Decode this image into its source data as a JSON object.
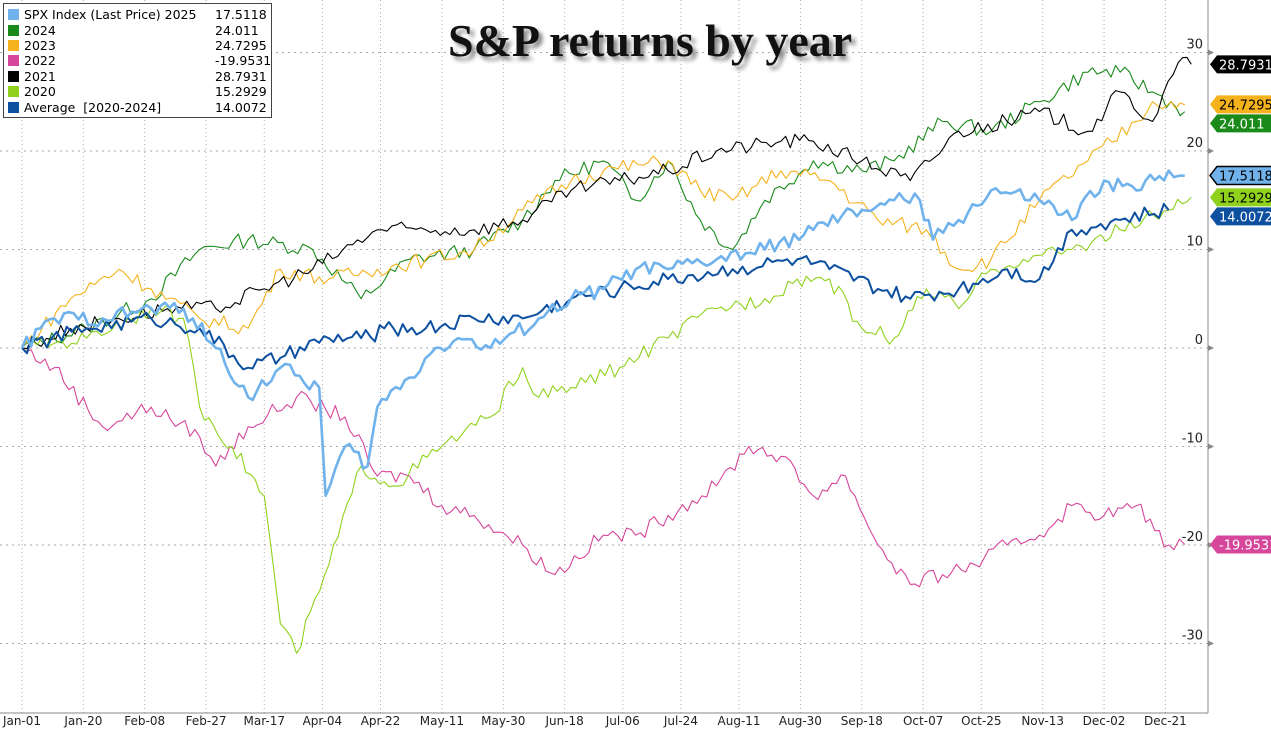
{
  "chart_data": {
    "type": "line",
    "title": "S&P returns by year",
    "xlabel": "",
    "ylabel": "",
    "x_unit": "day of year",
    "xlim": [
      0,
      366
    ],
    "ylim": [
      -37,
      36
    ],
    "grid": true,
    "legend_position": "top-left",
    "x_ticks": [
      {
        "label": "Jan-01",
        "day": 0
      },
      {
        "label": "Jan-20",
        "day": 19
      },
      {
        "label": "Feb-08",
        "day": 38
      },
      {
        "label": "Feb-27",
        "day": 57
      },
      {
        "label": "Mar-17",
        "day": 75
      },
      {
        "label": "Apr-04",
        "day": 93
      },
      {
        "label": "Apr-22",
        "day": 111
      },
      {
        "label": "May-11",
        "day": 130
      },
      {
        "label": "May-30",
        "day": 149
      },
      {
        "label": "Jun-18",
        "day": 168
      },
      {
        "label": "Jul-06",
        "day": 186
      },
      {
        "label": "Jul-24",
        "day": 204
      },
      {
        "label": "Aug-11",
        "day": 222
      },
      {
        "label": "Aug-30",
        "day": 241
      },
      {
        "label": "Sep-18",
        "day": 260
      },
      {
        "label": "Oct-07",
        "day": 279
      },
      {
        "label": "Oct-25",
        "day": 297
      },
      {
        "label": "Nov-13",
        "day": 316
      },
      {
        "label": "Dec-02",
        "day": 335
      },
      {
        "label": "Dec-21",
        "day": 354
      }
    ],
    "y_ticks": [
      30,
      20,
      10,
      0,
      -10,
      -20,
      -30
    ],
    "series": [
      {
        "name": "2024",
        "label": "2024",
        "last": "24.011",
        "color": "#1a8a1a",
        "width": 1.1,
        "tag_text": "#fff",
        "points": [
          [
            0,
            0
          ],
          [
            20,
            2
          ],
          [
            40,
            5
          ],
          [
            55,
            10
          ],
          [
            70,
            11
          ],
          [
            90,
            10
          ],
          [
            105,
            5
          ],
          [
            120,
            9
          ],
          [
            140,
            10
          ],
          [
            155,
            13
          ],
          [
            165,
            17
          ],
          [
            180,
            19
          ],
          [
            190,
            15
          ],
          [
            200,
            19
          ],
          [
            210,
            13
          ],
          [
            220,
            10
          ],
          [
            230,
            15
          ],
          [
            245,
            19
          ],
          [
            260,
            18
          ],
          [
            270,
            19
          ],
          [
            285,
            23
          ],
          [
            300,
            22
          ],
          [
            315,
            25
          ],
          [
            330,
            28
          ],
          [
            340,
            28
          ],
          [
            350,
            26
          ],
          [
            360,
            24
          ]
        ]
      },
      {
        "name": "2023",
        "label": "2023",
        "last": "24.7295",
        "color": "#f5b21c",
        "width": 1.1,
        "tag_text": "#000",
        "points": [
          [
            0,
            0
          ],
          [
            15,
            5
          ],
          [
            30,
            8
          ],
          [
            40,
            6
          ],
          [
            55,
            3
          ],
          [
            70,
            2
          ],
          [
            80,
            8
          ],
          [
            95,
            7
          ],
          [
            110,
            8
          ],
          [
            125,
            9
          ],
          [
            140,
            10
          ],
          [
            155,
            14
          ],
          [
            170,
            17
          ],
          [
            180,
            18
          ],
          [
            200,
            19
          ],
          [
            210,
            16
          ],
          [
            220,
            15
          ],
          [
            235,
            18
          ],
          [
            250,
            17
          ],
          [
            265,
            13
          ],
          [
            280,
            12
          ],
          [
            290,
            8
          ],
          [
            300,
            9
          ],
          [
            315,
            15
          ],
          [
            330,
            19
          ],
          [
            345,
            23
          ],
          [
            350,
            25
          ],
          [
            360,
            24.7
          ]
        ]
      },
      {
        "name": "2022",
        "label": "2022",
        "last": "-19.9531",
        "color": "#d6469a",
        "width": 1.1,
        "tag_text": "#fff",
        "points": [
          [
            0,
            0
          ],
          [
            10,
            -2
          ],
          [
            25,
            -8
          ],
          [
            40,
            -6
          ],
          [
            55,
            -9
          ],
          [
            60,
            -12
          ],
          [
            70,
            -8
          ],
          [
            85,
            -5
          ],
          [
            100,
            -7
          ],
          [
            110,
            -13
          ],
          [
            120,
            -13
          ],
          [
            130,
            -16
          ],
          [
            140,
            -17
          ],
          [
            155,
            -20
          ],
          [
            165,
            -23
          ],
          [
            180,
            -19
          ],
          [
            190,
            -19
          ],
          [
            200,
            -17
          ],
          [
            215,
            -14
          ],
          [
            225,
            -10
          ],
          [
            235,
            -11
          ],
          [
            245,
            -15
          ],
          [
            255,
            -13
          ],
          [
            265,
            -20
          ],
          [
            275,
            -24
          ],
          [
            285,
            -23
          ],
          [
            295,
            -22
          ],
          [
            305,
            -20
          ],
          [
            315,
            -19
          ],
          [
            325,
            -16
          ],
          [
            335,
            -17
          ],
          [
            345,
            -16
          ],
          [
            355,
            -20
          ],
          [
            360,
            -19.95
          ]
        ]
      },
      {
        "name": "2021",
        "label": "2021",
        "last": "28.7931",
        "color": "#000000",
        "width": 1.1,
        "tag_text": "#fff",
        "points": [
          [
            0,
            0
          ],
          [
            15,
            2
          ],
          [
            30,
            3
          ],
          [
            45,
            4
          ],
          [
            60,
            4
          ],
          [
            75,
            6
          ],
          [
            90,
            8
          ],
          [
            110,
            12
          ],
          [
            125,
            12
          ],
          [
            140,
            12
          ],
          [
            155,
            13
          ],
          [
            170,
            16
          ],
          [
            185,
            17
          ],
          [
            200,
            18
          ],
          [
            215,
            20
          ],
          [
            235,
            21
          ],
          [
            245,
            21
          ],
          [
            260,
            19
          ],
          [
            275,
            17
          ],
          [
            290,
            22
          ],
          [
            305,
            23
          ],
          [
            315,
            24
          ],
          [
            330,
            22
          ],
          [
            340,
            26
          ],
          [
            350,
            23
          ],
          [
            358,
            29
          ],
          [
            362,
            28.8
          ]
        ]
      },
      {
        "name": "2020",
        "label": "2020",
        "last": "15.2929",
        "color": "#8fd11c",
        "width": 1.1,
        "tag_text": "#000",
        "points": [
          [
            0,
            0
          ],
          [
            20,
            1
          ],
          [
            40,
            4
          ],
          [
            50,
            3
          ],
          [
            55,
            -6
          ],
          [
            65,
            -10
          ],
          [
            75,
            -15
          ],
          [
            80,
            -28
          ],
          [
            85,
            -31
          ],
          [
            95,
            -22
          ],
          [
            105,
            -12
          ],
          [
            115,
            -14
          ],
          [
            130,
            -10
          ],
          [
            145,
            -7
          ],
          [
            155,
            -2
          ],
          [
            160,
            -5
          ],
          [
            170,
            -4
          ],
          [
            185,
            -2
          ],
          [
            200,
            1
          ],
          [
            215,
            4
          ],
          [
            230,
            5
          ],
          [
            240,
            7
          ],
          [
            250,
            7
          ],
          [
            260,
            2
          ],
          [
            270,
            1
          ],
          [
            280,
            6
          ],
          [
            290,
            4
          ],
          [
            300,
            8
          ],
          [
            310,
            9
          ],
          [
            325,
            10
          ],
          [
            340,
            12
          ],
          [
            355,
            14
          ],
          [
            362,
            15.3
          ]
        ]
      },
      {
        "name": "Average",
        "label": "Average  [2020-2024]",
        "last": "14.0072",
        "color": "#0d50a0",
        "width": 2,
        "tag_text": "#fff",
        "points": [
          [
            0,
            0
          ],
          [
            20,
            2
          ],
          [
            40,
            3
          ],
          [
            55,
            2
          ],
          [
            70,
            -2
          ],
          [
            80,
            -1
          ],
          [
            95,
            1
          ],
          [
            105,
            1
          ],
          [
            115,
            2
          ],
          [
            125,
            2
          ],
          [
            140,
            3
          ],
          [
            155,
            3
          ],
          [
            170,
            5
          ],
          [
            185,
            6
          ],
          [
            200,
            7
          ],
          [
            220,
            8
          ],
          [
            240,
            9
          ],
          [
            250,
            8
          ],
          [
            265,
            6
          ],
          [
            275,
            5
          ],
          [
            290,
            6
          ],
          [
            305,
            8
          ],
          [
            315,
            7
          ],
          [
            325,
            12
          ],
          [
            340,
            13
          ],
          [
            355,
            14
          ]
        ]
      },
      {
        "name": "SPX 2025",
        "label": "SPX Index (Last Price) 2025",
        "last": "17.5118",
        "color": "#6fb2ec",
        "width": 2.6,
        "tag_text": "#000",
        "points": [
          [
            0,
            0
          ],
          [
            10,
            3
          ],
          [
            25,
            3
          ],
          [
            40,
            4
          ],
          [
            50,
            4
          ],
          [
            60,
            0
          ],
          [
            70,
            -5
          ],
          [
            80,
            -2
          ],
          [
            92,
            -4
          ],
          [
            94,
            -15
          ],
          [
            100,
            -10
          ],
          [
            107,
            -12
          ],
          [
            110,
            -6
          ],
          [
            120,
            -3
          ],
          [
            128,
            0
          ],
          [
            135,
            1
          ],
          [
            145,
            0
          ],
          [
            160,
            3
          ],
          [
            170,
            5
          ],
          [
            180,
            6
          ],
          [
            190,
            8
          ],
          [
            200,
            8
          ],
          [
            215,
            9
          ],
          [
            230,
            10
          ],
          [
            245,
            12
          ],
          [
            260,
            14
          ],
          [
            270,
            15
          ],
          [
            278,
            15
          ],
          [
            282,
            11
          ],
          [
            290,
            13
          ],
          [
            300,
            16
          ],
          [
            315,
            15
          ],
          [
            325,
            13
          ],
          [
            335,
            17
          ],
          [
            345,
            16
          ],
          [
            355,
            18
          ],
          [
            360,
            17.5
          ]
        ]
      }
    ],
    "legend_order": [
      6,
      0,
      1,
      2,
      3,
      4,
      5
    ]
  }
}
